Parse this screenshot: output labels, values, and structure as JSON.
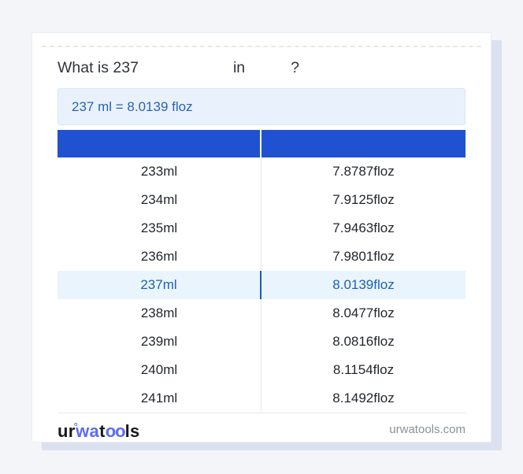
{
  "title": {
    "prefix": "What is 237",
    "connector": "in",
    "suffix": "?"
  },
  "result": {
    "text": "237 ml = 8.0139 floz"
  },
  "table": {
    "headers": [
      "",
      ""
    ],
    "rows": [
      {
        "ml": "233ml",
        "floz": "7.8787floz",
        "highlight": false
      },
      {
        "ml": "234ml",
        "floz": "7.9125floz",
        "highlight": false
      },
      {
        "ml": "235ml",
        "floz": "7.9463floz",
        "highlight": false
      },
      {
        "ml": "236ml",
        "floz": "7.9801floz",
        "highlight": false
      },
      {
        "ml": "237ml",
        "floz": "8.0139floz",
        "highlight": true
      },
      {
        "ml": "238ml",
        "floz": "8.0477floz",
        "highlight": false
      },
      {
        "ml": "239ml",
        "floz": "8.0816floz",
        "highlight": false
      },
      {
        "ml": "240ml",
        "floz": "8.1154floz",
        "highlight": false
      },
      {
        "ml": "241ml",
        "floz": "8.1492floz",
        "highlight": false
      }
    ]
  },
  "footer": {
    "logo": {
      "part1": "ur",
      "ring": "°",
      "part2": "wa",
      "part3": "t",
      "part4": "oo",
      "part5": "ls"
    },
    "site": "urwatools.com"
  },
  "colors": {
    "header_blue": "#2051d1",
    "result_text_blue": "#2a63b7",
    "highlight_row_bg": "#eaf4fd",
    "highlight_text": "#1d61b5",
    "logo_blue": "#5b6cf3",
    "page_bg": "#f3f5f9"
  }
}
